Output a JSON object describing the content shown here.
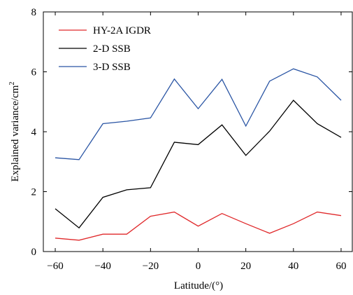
{
  "chart_data": {
    "type": "line",
    "title": "",
    "xlabel": "Latitude/(°)",
    "ylabel": "Explained variance/cm",
    "ylabel_superscript": "2",
    "xlim": [
      -65,
      65
    ],
    "ylim": [
      0,
      8
    ],
    "xticks": [
      -60,
      -40,
      -20,
      0,
      20,
      40,
      60
    ],
    "xtick_labels": [
      "−60",
      "−40",
      "−20",
      "0",
      "20",
      "40",
      "60"
    ],
    "yticks": [
      0,
      2,
      4,
      6,
      8
    ],
    "ytick_labels": [
      "0",
      "2",
      "4",
      "6",
      "8"
    ],
    "grid": false,
    "legend_position": "top-left",
    "x": [
      -60,
      -50,
      -40,
      -30,
      -20,
      -10,
      0,
      10,
      20,
      30,
      40,
      50,
      60
    ],
    "series": [
      {
        "name": "HY-2A IGDR",
        "color": "#e0292b",
        "values": [
          0.45,
          0.38,
          0.58,
          0.58,
          1.18,
          1.32,
          0.85,
          1.27,
          0.93,
          0.61,
          0.93,
          1.32,
          1.2
        ]
      },
      {
        "name": "2-D SSB",
        "color": "#000000",
        "values": [
          1.43,
          0.79,
          1.81,
          2.06,
          2.13,
          3.65,
          3.57,
          4.23,
          3.21,
          4.02,
          5.05,
          4.27,
          3.81
        ]
      },
      {
        "name": "3-D SSB",
        "color": "#2a55a4",
        "values": [
          3.13,
          3.07,
          4.27,
          4.35,
          4.46,
          5.76,
          4.77,
          5.75,
          4.19,
          5.69,
          6.1,
          5.83,
          5.05
        ]
      }
    ]
  }
}
